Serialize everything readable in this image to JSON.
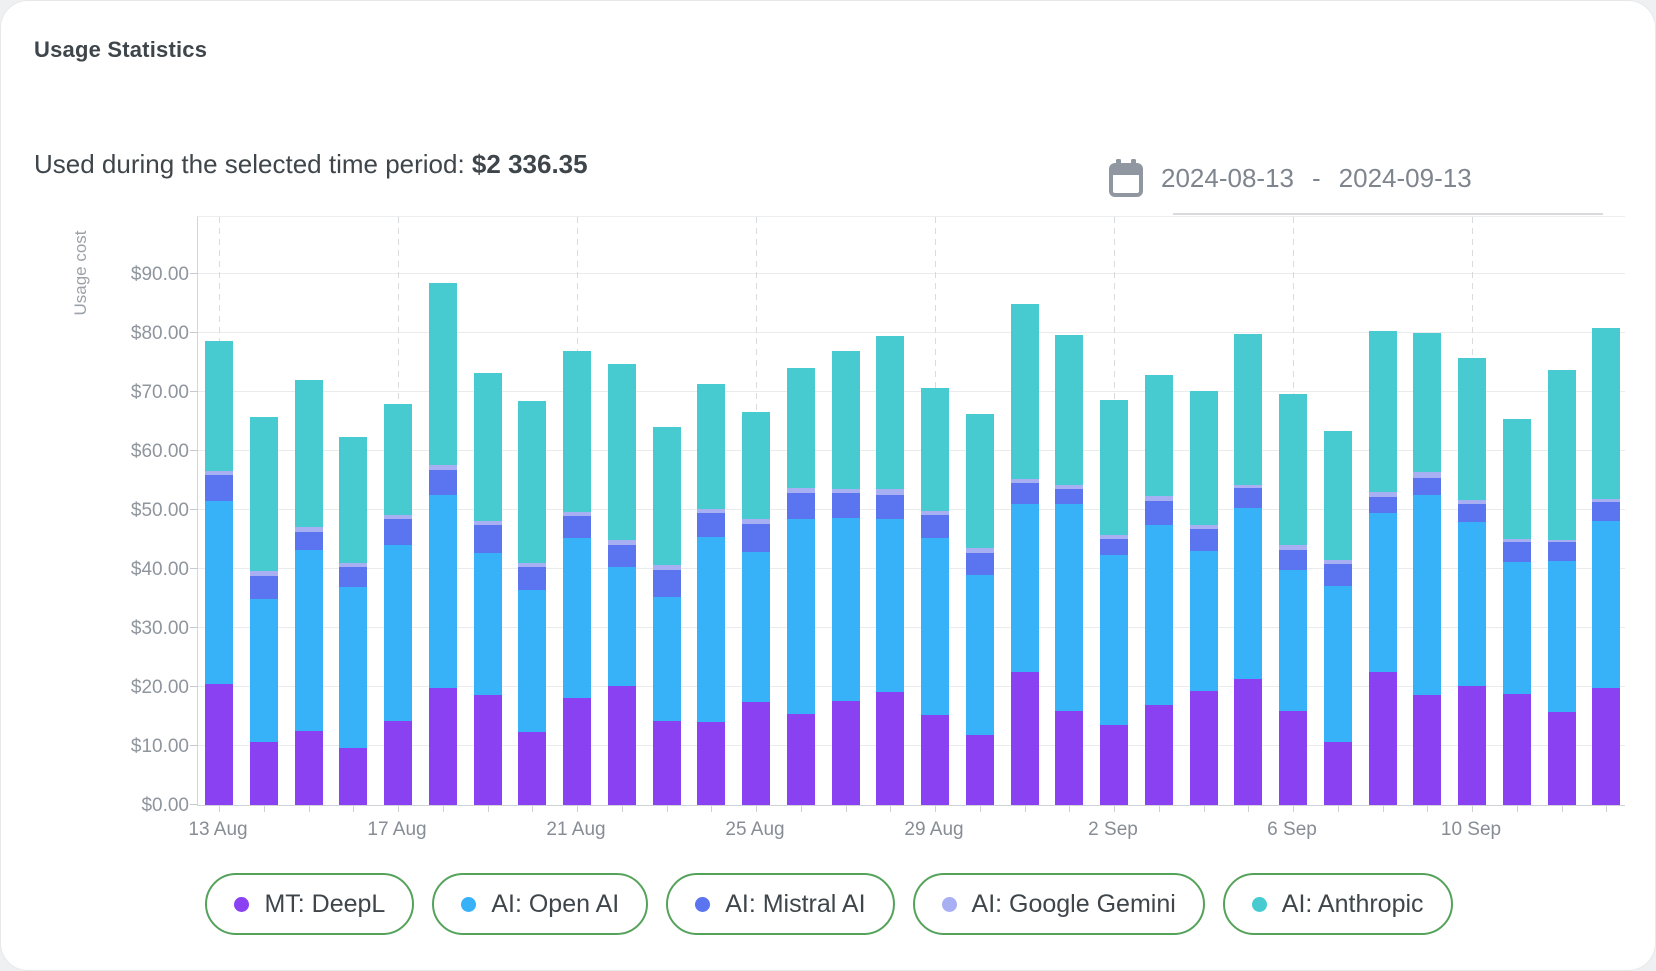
{
  "header": {
    "title": "Usage Statistics",
    "subtitle_label": "Used during the selected time period: ",
    "total_amount": "$2 336.35"
  },
  "date_range": {
    "start": "2024-08-13",
    "separator": "-",
    "end": "2024-09-13"
  },
  "chart_data": {
    "type": "bar",
    "stacked": true,
    "ylabel": "Usage cost",
    "ylim": [
      0,
      100
    ],
    "y_tick_labels": [
      "$0.00",
      "$10.00",
      "$20.00",
      "$30.00",
      "$40.00",
      "$50.00",
      "$60.00",
      "$70.00",
      "$80.00",
      "$90.00"
    ],
    "categories": [
      "13 Aug",
      "14 Aug",
      "15 Aug",
      "16 Aug",
      "17 Aug",
      "18 Aug",
      "19 Aug",
      "20 Aug",
      "21 Aug",
      "22 Aug",
      "23 Aug",
      "24 Aug",
      "25 Aug",
      "26 Aug",
      "27 Aug",
      "28 Aug",
      "29 Aug",
      "30 Aug",
      "31 Aug",
      "1 Sep",
      "2 Sep",
      "3 Sep",
      "4 Sep",
      "5 Sep",
      "6 Sep",
      "7 Sep",
      "8 Sep",
      "9 Sep",
      "10 Sep",
      "11 Sep",
      "12 Sep",
      "13 Sep"
    ],
    "x_tick_labels": [
      "13 Aug",
      "17 Aug",
      "21 Aug",
      "25 Aug",
      "29 Aug",
      "2 Sep",
      "6 Sep",
      "10 Sep"
    ],
    "x_tick_step": 4,
    "grid": "horizontal solid, vertical dashed at labeled ticks",
    "legend_position": "bottom",
    "series": [
      {
        "name": "MT: DeepL",
        "color": "#8a41f2",
        "values": [
          20.5,
          10.6,
          12.6,
          9.7,
          14.2,
          19.9,
          18.7,
          12.4,
          18.2,
          20.2,
          14.2,
          14.1,
          17.4,
          15.4,
          17.6,
          19.1,
          15.3,
          11.8,
          22.5,
          15.9,
          13.6,
          17.0,
          19.3,
          21.4,
          16.0,
          10.7,
          22.5,
          18.7,
          20.1,
          18.8,
          15.8,
          19.8
        ]
      },
      {
        "name": "AI: Open AI",
        "color": "#37b2f8",
        "values": [
          31.0,
          24.4,
          30.7,
          27.3,
          29.9,
          32.6,
          24.0,
          24.1,
          27.0,
          20.2,
          21.1,
          31.4,
          25.5,
          33.1,
          31.1,
          29.3,
          29.9,
          27.2,
          28.5,
          35.1,
          28.8,
          30.5,
          23.7,
          29.0,
          23.8,
          26.4,
          27.0,
          33.9,
          27.8,
          22.4,
          25.5,
          28.4
        ]
      },
      {
        "name": "AI: Mistral AI",
        "color": "#5b74ef",
        "values": [
          4.4,
          3.8,
          2.9,
          3.3,
          4.3,
          4.3,
          4.8,
          3.8,
          3.8,
          3.7,
          4.5,
          4.0,
          4.7,
          4.4,
          4.1,
          4.2,
          3.9,
          3.7,
          3.5,
          2.6,
          2.7,
          4.1,
          3.7,
          3.3,
          3.4,
          3.8,
          2.7,
          2.9,
          3.1,
          3.3,
          3.2,
          3.1
        ]
      },
      {
        "name": "AI: Google Gemini",
        "color": "#a8aff2",
        "values": [
          0.7,
          0.8,
          0.9,
          0.8,
          0.7,
          0.8,
          0.7,
          0.7,
          0.6,
          0.8,
          0.8,
          0.7,
          0.8,
          0.8,
          0.7,
          1.0,
          0.8,
          0.8,
          0.7,
          0.7,
          0.7,
          0.8,
          0.8,
          0.6,
          0.9,
          0.7,
          0.8,
          1.0,
          0.7,
          0.6,
          0.5,
          0.6
        ]
      },
      {
        "name": "AI: Anthropic",
        "color": "#47cbd0",
        "values": [
          22.1,
          26.1,
          24.9,
          21.3,
          18.9,
          30.9,
          25.0,
          27.4,
          27.4,
          29.9,
          23.5,
          21.2,
          18.2,
          20.3,
          23.5,
          25.9,
          20.8,
          22.7,
          29.7,
          25.3,
          22.9,
          20.5,
          22.6,
          25.5,
          25.6,
          21.8,
          27.4,
          23.5,
          24.0,
          20.4,
          28.7,
          29.0
        ]
      }
    ]
  },
  "colors": {
    "legend_border": "#55a25b",
    "text_dark": "#3f464b",
    "text_gray": "#7f858e",
    "axis_gray": "#8f959d"
  }
}
